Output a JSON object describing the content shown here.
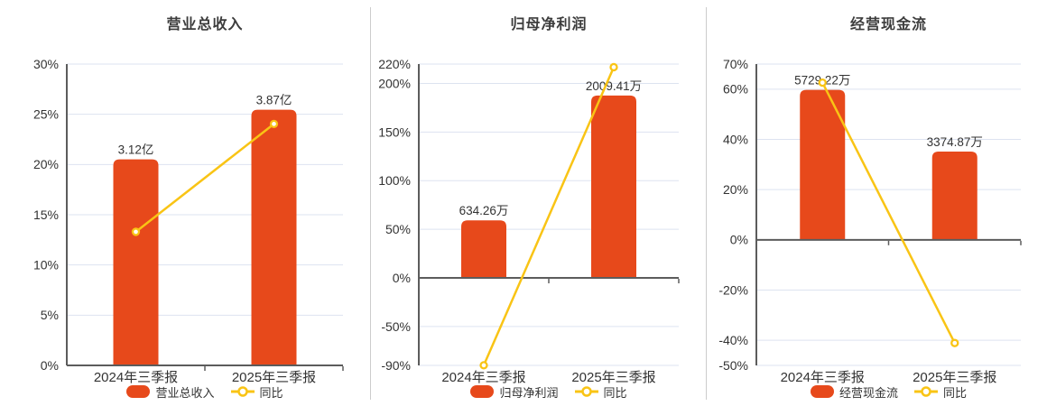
{
  "colors": {
    "background": "#ffffff",
    "bar": "#e7491b",
    "line": "#f9c415",
    "grid": "#dde3f0",
    "axis": "#5c5c5c",
    "text": "#333333",
    "title": "#3c3c3c",
    "divider": "#cccccc"
  },
  "chart_data": [
    {
      "type": "bar+line",
      "title": "营业总收入",
      "categories": [
        "2024年三季报",
        "2025年三季报"
      ],
      "bar_series": {
        "name": "营业总收入",
        "values": [
          3.12,
          3.87
        ],
        "labels": [
          "3.12亿",
          "3.87亿"
        ],
        "unit": "亿"
      },
      "line_series": {
        "name": "同比",
        "values": [
          13.3,
          24.04
        ],
        "unit": "%"
      },
      "y_axis": {
        "min": 0,
        "max": 30,
        "ticks": [
          0,
          5,
          10,
          15,
          20,
          25,
          30
        ],
        "unit": "%"
      },
      "bar_display_top_axis_value": 25.45,
      "legend": [
        "营业总收入",
        "同比"
      ],
      "grid": true,
      "legend_position": "bottom"
    },
    {
      "type": "bar+line",
      "title": "归母净利润",
      "categories": [
        "2024年三季报",
        "2025年三季报"
      ],
      "bar_series": {
        "name": "归母净利润",
        "values": [
          634.26,
          2009.41
        ],
        "labels": [
          "634.26万",
          "2009.41万"
        ],
        "unit": "万"
      },
      "line_series": {
        "name": "同比",
        "values": [
          -89.9,
          216.8
        ],
        "unit": "%"
      },
      "y_axis": {
        "min": -90,
        "max": 220,
        "ticks": [
          -90,
          -50,
          0,
          50,
          100,
          150,
          200,
          220
        ],
        "unit": "%"
      },
      "bar_display_top_axis_value": 187.6,
      "legend": [
        "归母净利润",
        "同比"
      ],
      "grid": true,
      "legend_position": "bottom"
    },
    {
      "type": "bar+line",
      "title": "经营现金流",
      "categories": [
        "2024年三季报",
        "2025年三季报"
      ],
      "bar_series": {
        "name": "经营现金流",
        "values": [
          5729.22,
          3374.87
        ],
        "labels": [
          "5729.22万",
          "3374.87万"
        ],
        "unit": "万"
      },
      "line_series": {
        "name": "同比",
        "values": [
          62.6,
          -41.09
        ],
        "unit": "%"
      },
      "y_axis": {
        "min": -50,
        "max": 70,
        "ticks": [
          -50,
          -40,
          -20,
          0,
          20,
          40,
          60,
          70
        ],
        "unit": "%"
      },
      "bar_display_top_axis_value": 59.7,
      "legend": [
        "经营现金流",
        "同比"
      ],
      "grid": true,
      "legend_position": "bottom"
    }
  ]
}
